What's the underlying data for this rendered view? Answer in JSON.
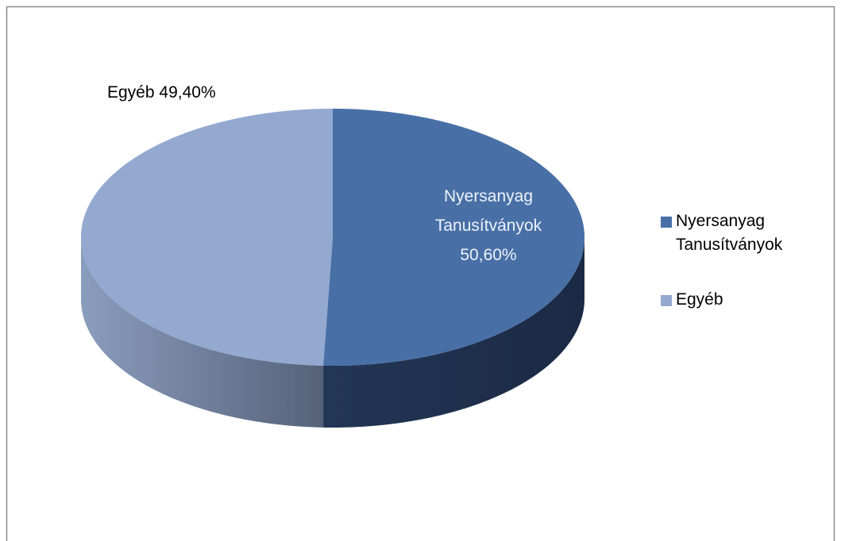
{
  "chart_data": {
    "type": "pie",
    "categories": [
      "Nyersanyag Tanusítványok",
      "Egyéb"
    ],
    "values": [
      50.6,
      49.4
    ],
    "value_labels": [
      "50,60%",
      "49,40%"
    ],
    "colors": [
      "#4870a6",
      "#94a9d0"
    ],
    "legend": "right"
  }
}
